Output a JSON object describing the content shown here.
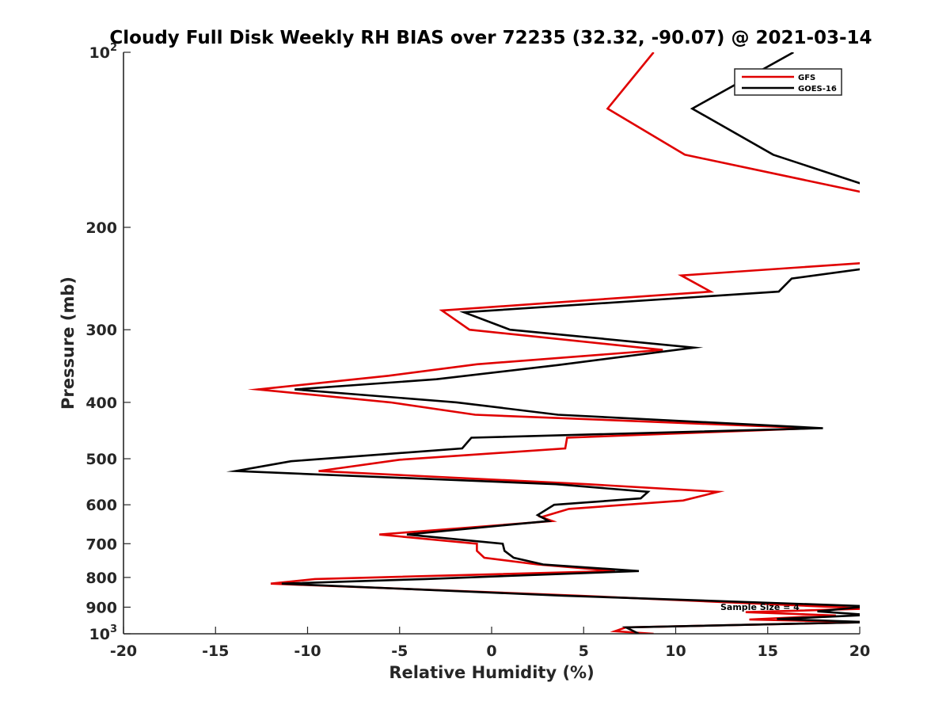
{
  "chart_data": {
    "type": "line",
    "title": "Cloudy Full Disk Weekly RH BIAS over 72235 (32.32, -90.07) @ 2021-03-14",
    "xlabel": "Relative Humidity (%)",
    "ylabel": "Pressure (mb)",
    "xlim": [
      -20,
      20
    ],
    "ylim": [
      100,
      1000
    ],
    "yscale": "log",
    "y_reversed": true,
    "grid": false,
    "legend_position": "top-right",
    "x_ticks": [
      -20,
      -15,
      -10,
      -5,
      0,
      5,
      10,
      15,
      20
    ],
    "x_tick_labels": [
      "-20",
      "-15",
      "-10",
      "-5",
      "0",
      "5",
      "10",
      "15",
      "20"
    ],
    "y_ticks": [
      100,
      200,
      300,
      400,
      500,
      600,
      700,
      800,
      900,
      1000
    ],
    "y_tick_labels": [
      {
        "base": "10",
        "exp": "2"
      },
      {
        "base": "200",
        "exp": ""
      },
      {
        "base": "300",
        "exp": ""
      },
      {
        "base": "400",
        "exp": ""
      },
      {
        "base": "500",
        "exp": ""
      },
      {
        "base": "600",
        "exp": ""
      },
      {
        "base": "700",
        "exp": ""
      },
      {
        "base": "800",
        "exp": ""
      },
      {
        "base": "900",
        "exp": ""
      },
      {
        "base": "10",
        "exp": "3"
      }
    ],
    "annotation": "Sample Size = 4",
    "series": [
      {
        "name": "GFS",
        "color": "#e00000",
        "points": [
          [
            8.8,
            100
          ],
          [
            6.3,
            125
          ],
          [
            10.5,
            150
          ],
          [
            20.5,
            175
          ],
          [
            20.5,
            230
          ],
          [
            10.3,
            242
          ],
          [
            11.9,
            258
          ],
          [
            -2.7,
            278
          ],
          [
            -1.2,
            300
          ],
          [
            9.3,
            325
          ],
          [
            -0.8,
            344
          ],
          [
            -5.6,
            360
          ],
          [
            -12.7,
            380
          ],
          [
            -5.5,
            400
          ],
          [
            -0.9,
            420
          ],
          [
            17.5,
            443
          ],
          [
            4.1,
            460
          ],
          [
            4.0,
            480
          ],
          [
            -5.0,
            502
          ],
          [
            -9.4,
            525
          ],
          [
            5.2,
            553
          ],
          [
            12.3,
            570
          ],
          [
            10.4,
            590
          ],
          [
            4.2,
            610
          ],
          [
            2.7,
            630
          ],
          [
            3.3,
            640
          ],
          [
            -6.1,
            675
          ],
          [
            -0.8,
            700
          ],
          [
            -0.8,
            720
          ],
          [
            -0.4,
            740
          ],
          [
            2.5,
            760
          ],
          [
            6.7,
            780
          ],
          [
            -9.6,
            805
          ],
          [
            -12.0,
            820
          ],
          [
            4.7,
            860
          ],
          [
            20.5,
            905
          ],
          [
            13.8,
            918
          ],
          [
            18.7,
            930
          ],
          [
            14.0,
            945
          ],
          [
            20.5,
            955
          ],
          [
            7.3,
            975
          ],
          [
            6.7,
            990
          ],
          [
            8.8,
            1000
          ]
        ]
      },
      {
        "name": "GOES-16",
        "color": "#000000",
        "points": [
          [
            16.4,
            100
          ],
          [
            10.9,
            125
          ],
          [
            15.3,
            150
          ],
          [
            20.5,
            170
          ],
          [
            20.5,
            235
          ],
          [
            16.3,
            245
          ],
          [
            15.6,
            258
          ],
          [
            -1.5,
            280
          ],
          [
            1.0,
            300
          ],
          [
            11.0,
            322
          ],
          [
            3.6,
            345
          ],
          [
            -3.0,
            365
          ],
          [
            -10.7,
            380
          ],
          [
            -1.9,
            400
          ],
          [
            3.6,
            420
          ],
          [
            18.0,
            443
          ],
          [
            -1.1,
            460
          ],
          [
            -1.6,
            480
          ],
          [
            -10.9,
            505
          ],
          [
            -13.9,
            525
          ],
          [
            3.5,
            553
          ],
          [
            8.5,
            570
          ],
          [
            8.1,
            585
          ],
          [
            3.4,
            600
          ],
          [
            2.5,
            625
          ],
          [
            3.1,
            640
          ],
          [
            -4.6,
            675
          ],
          [
            0.6,
            700
          ],
          [
            0.7,
            720
          ],
          [
            1.2,
            740
          ],
          [
            2.8,
            760
          ],
          [
            8.0,
            780
          ],
          [
            -3.6,
            805
          ],
          [
            -11.4,
            820
          ],
          [
            3.9,
            860
          ],
          [
            20.5,
            897
          ],
          [
            17.7,
            915
          ],
          [
            20.5,
            928
          ],
          [
            15.5,
            943
          ],
          [
            20.5,
            955
          ],
          [
            7.3,
            975
          ],
          [
            8.0,
            1000
          ]
        ]
      }
    ]
  }
}
